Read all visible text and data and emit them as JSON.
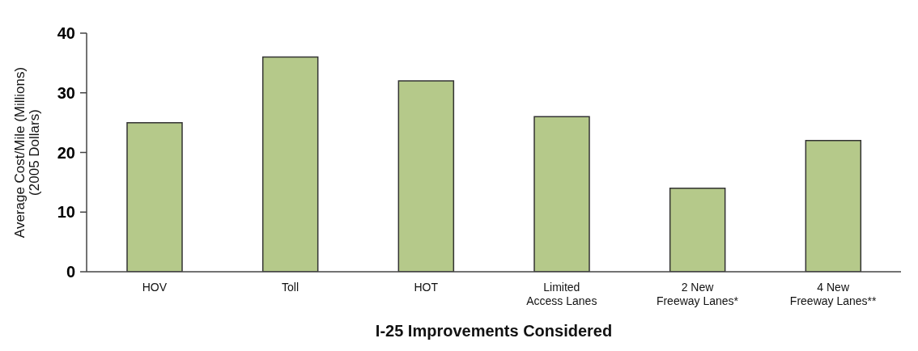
{
  "chart_data": {
    "type": "bar",
    "xlabel": "I-25 Improvements Considered",
    "ylabel": "Average Cost/Mile (Millions)\n(2005 Dollars)",
    "categories": [
      "HOV",
      "Toll",
      "HOT",
      "Limited\nAccess Lanes",
      "2 New\nFreeway Lanes*",
      "4 New\nFreeway Lanes**"
    ],
    "values": [
      25,
      36,
      32,
      26,
      14,
      22
    ],
    "color": "#b5c98a",
    "ylim": [
      0,
      40
    ],
    "yticks": [
      0,
      10,
      20,
      30,
      40
    ],
    "grid": false,
    "legend": false
  }
}
